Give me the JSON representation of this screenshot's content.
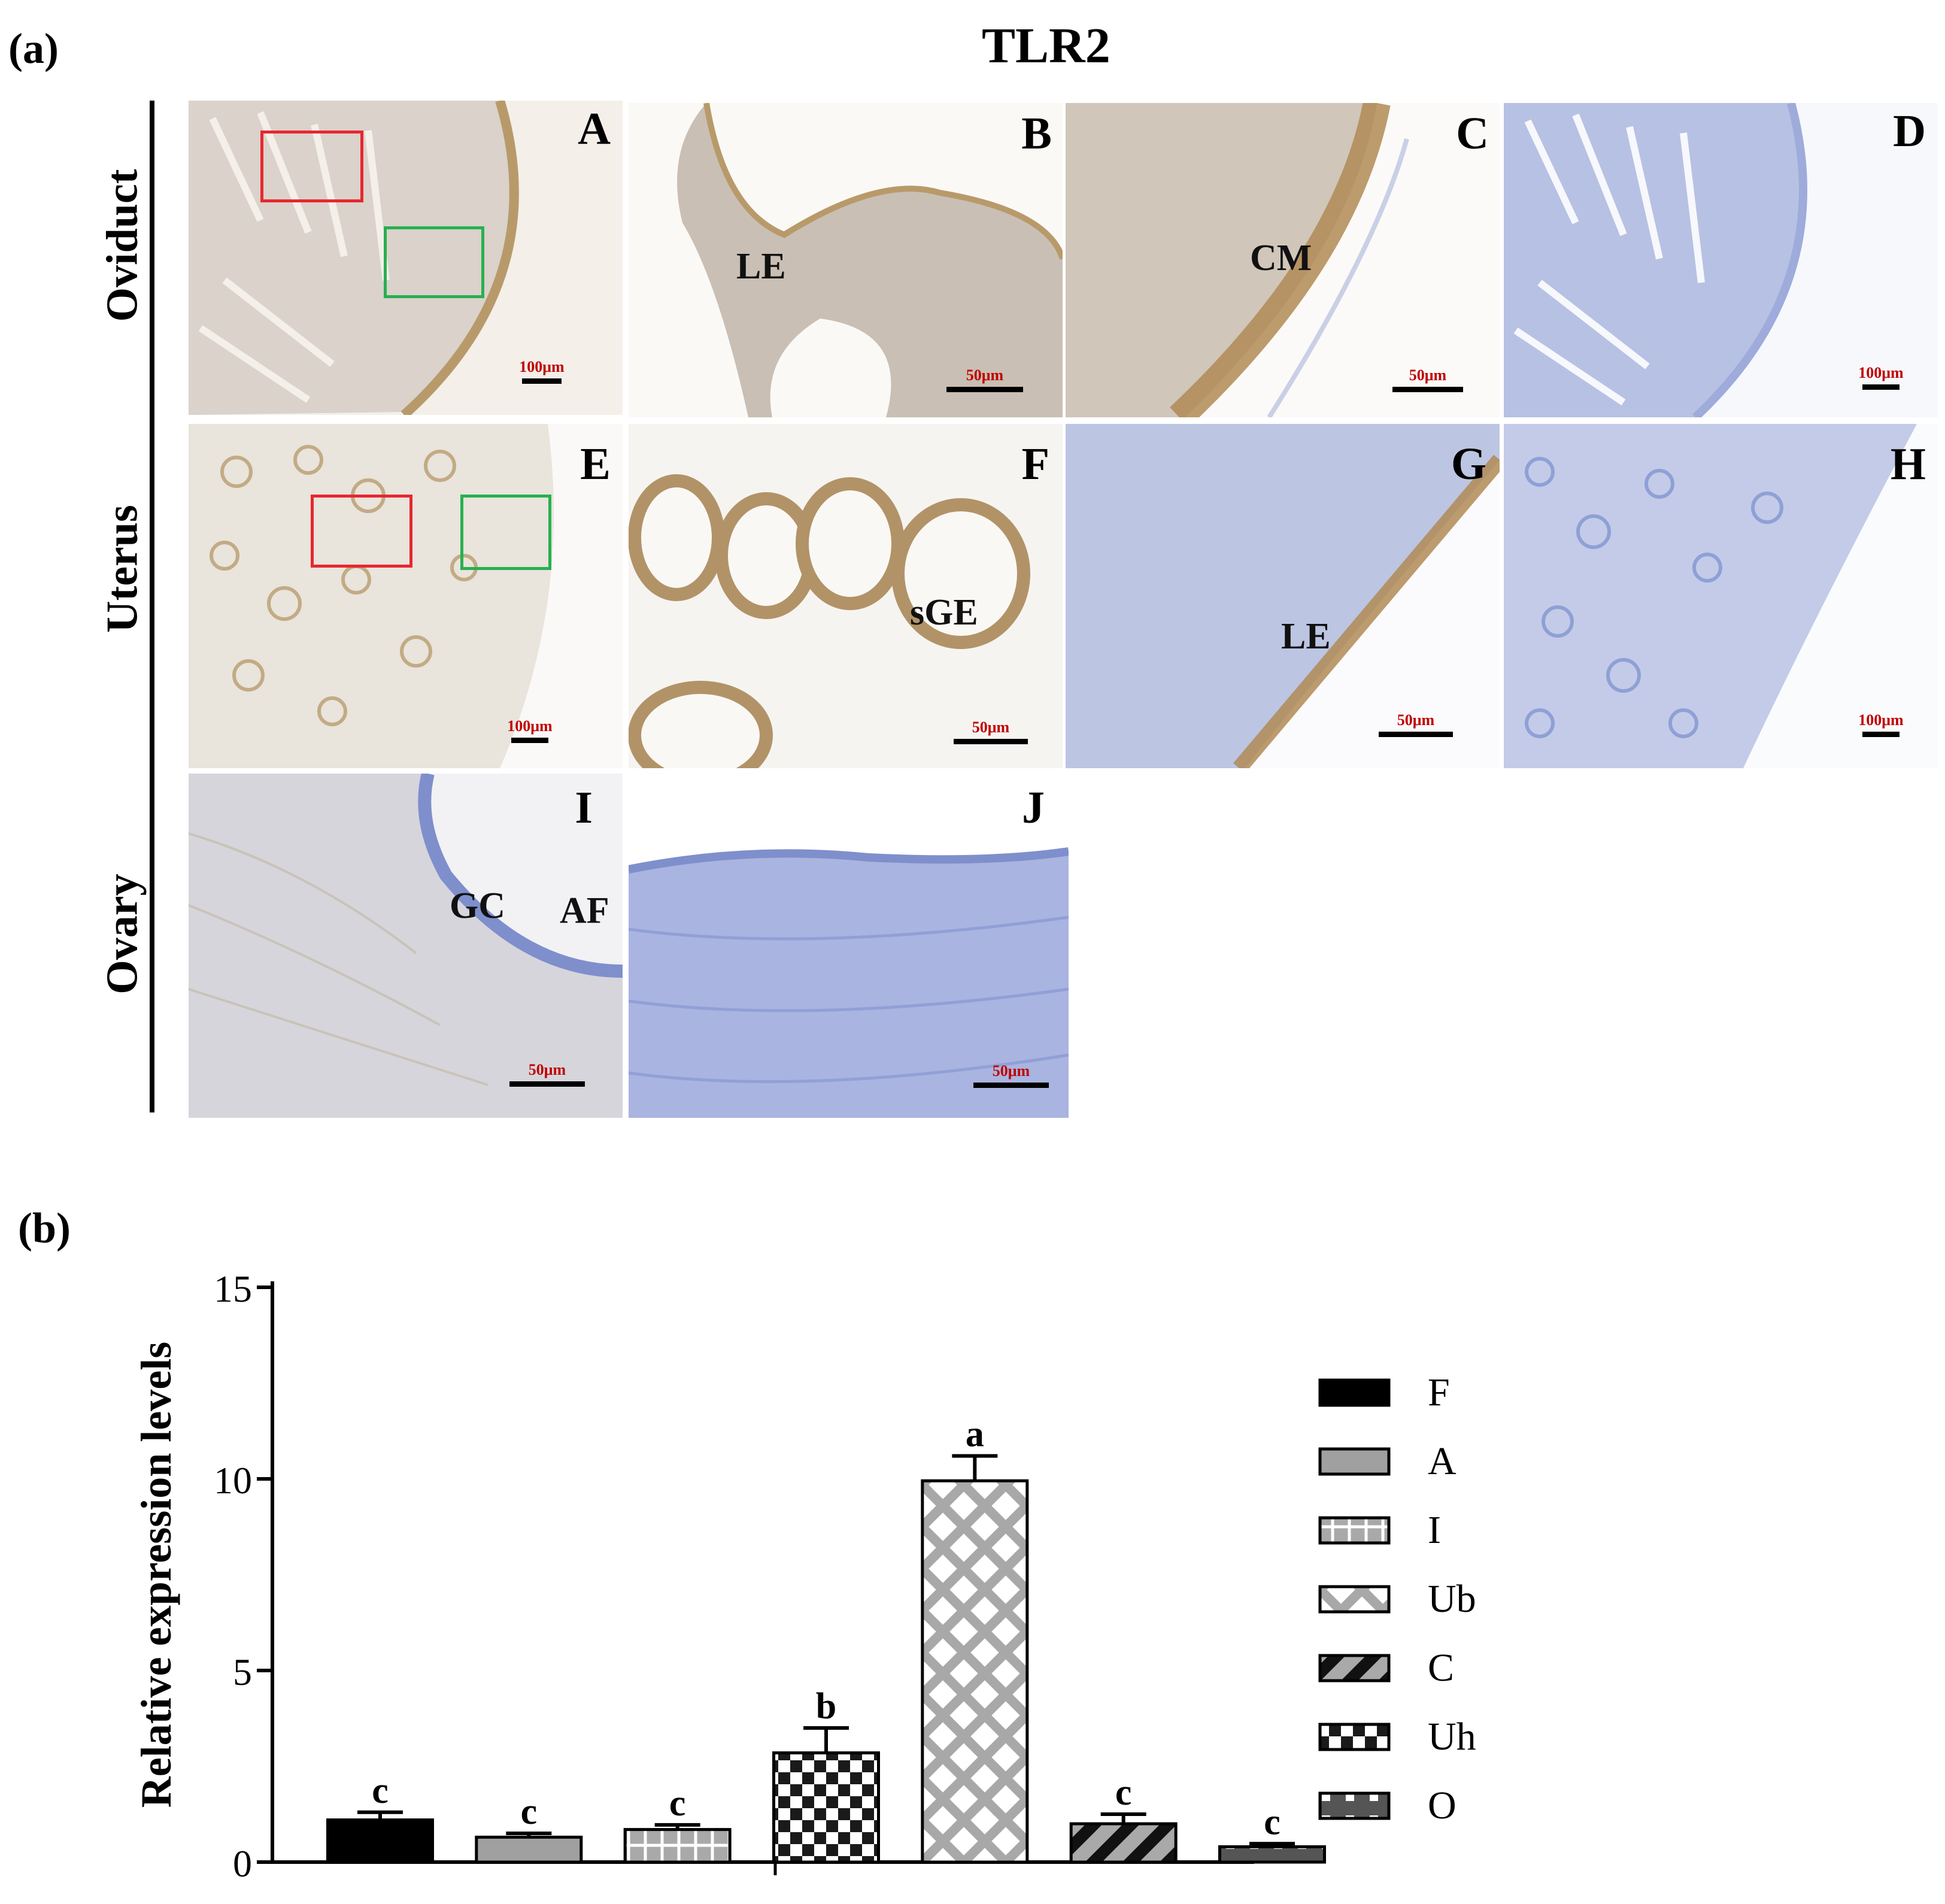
{
  "figure": {
    "label_a": "(a)",
    "label_b": "(b)",
    "title": "TLR2",
    "rows": [
      "Oviduct",
      "Uterus",
      "Ovary"
    ],
    "panels": [
      {
        "id": "A",
        "scalebar": "100μm",
        "annotations": []
      },
      {
        "id": "B",
        "scalebar": "50μm",
        "annotations": [
          "LE"
        ]
      },
      {
        "id": "C",
        "scalebar": "50μm",
        "annotations": [
          "CM"
        ]
      },
      {
        "id": "D",
        "scalebar": "100μm",
        "annotations": []
      },
      {
        "id": "E",
        "scalebar": "100μm",
        "annotations": []
      },
      {
        "id": "F",
        "scalebar": "50μm",
        "annotations": [
          "sGE"
        ]
      },
      {
        "id": "G",
        "scalebar": "50μm",
        "annotations": [
          "LE"
        ]
      },
      {
        "id": "H",
        "scalebar": "100μm",
        "annotations": []
      },
      {
        "id": "I",
        "scalebar": "50μm",
        "annotations": [
          "GC",
          "AF"
        ]
      },
      {
        "id": "J",
        "scalebar": "50μm",
        "annotations": []
      }
    ],
    "colors": {
      "red_box": "#e8272f",
      "green_box": "#27b050",
      "scalebar_text": "#c00000",
      "stain_blue": "#8fa0d6",
      "stain_brown": "#b89a6a"
    }
  },
  "chart_data": {
    "type": "bar",
    "categories": [
      "F",
      "A",
      "I",
      "Ub",
      "C",
      "Uh",
      "O"
    ],
    "values": [
      1.1,
      0.65,
      0.85,
      9.95,
      1.0,
      2.85,
      0.4
    ],
    "errors": [
      0.2,
      0.1,
      0.12,
      0.65,
      0.25,
      0.65,
      0.08
    ],
    "significance": [
      "c",
      "c",
      "c",
      "a",
      "c",
      "b",
      "c"
    ],
    "bar_order": [
      "F",
      "A",
      "I",
      "Uh",
      "Ub",
      "C",
      "O"
    ],
    "ylabel": "Relative expression levels",
    "xlabel": "",
    "ylim": [
      0,
      15
    ],
    "yticks": [
      0,
      5,
      10,
      15
    ],
    "legend": [
      "F",
      "A",
      "I",
      "Ub",
      "C",
      "Uh",
      "O"
    ],
    "legend_position": "right",
    "patterns": {
      "F": "solid-black",
      "A": "solid-gray",
      "I": "grid",
      "Ub": "cross",
      "C": "diagonal",
      "Uh": "checker",
      "O": "dashes"
    }
  }
}
